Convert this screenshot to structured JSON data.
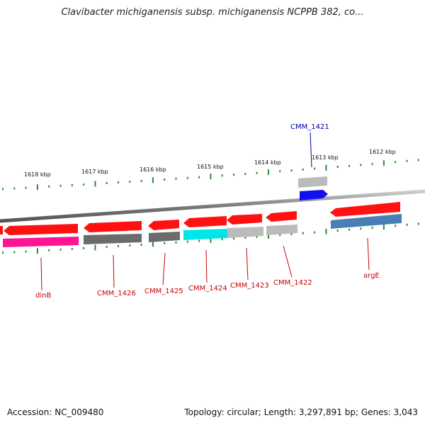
{
  "title": "Clavibacter michiganensis subsp. michiganensis NCPPB 382, co...",
  "accession": "Accession: NC_009480",
  "summary": "Topology: circular; Length: 3,297,891 bp; Genes: 3,043",
  "colors": {
    "backbone": "#888888",
    "tick": "#2e8b2e",
    "scale_label": "#111111",
    "gene_label_red": "#cc0000",
    "gene_label_blue": "#0000aa",
    "cds_red": "#ff1111",
    "gene_blue": "#1111ee",
    "gene_grey_light": "#bbbbbb",
    "gene_grey_dark": "#6b6b6b",
    "gene_magenta": "#ff1493",
    "gene_cyan": "#00e5e5",
    "gene_steelblue": "#4a7fb5"
  },
  "scale_labels": [
    "1618 kbp",
    "1617 kbp",
    "1616 kbp",
    "1615 kbp",
    "1614 kbp",
    "1613 kbp",
    "1612 kbp"
  ],
  "gene_labels": [
    "CMM_1421",
    "dinB",
    "CMM_1426",
    "CMM_1425",
    "CMM_1424",
    "CMM_1423",
    "CMM_1422",
    "argE"
  ]
}
